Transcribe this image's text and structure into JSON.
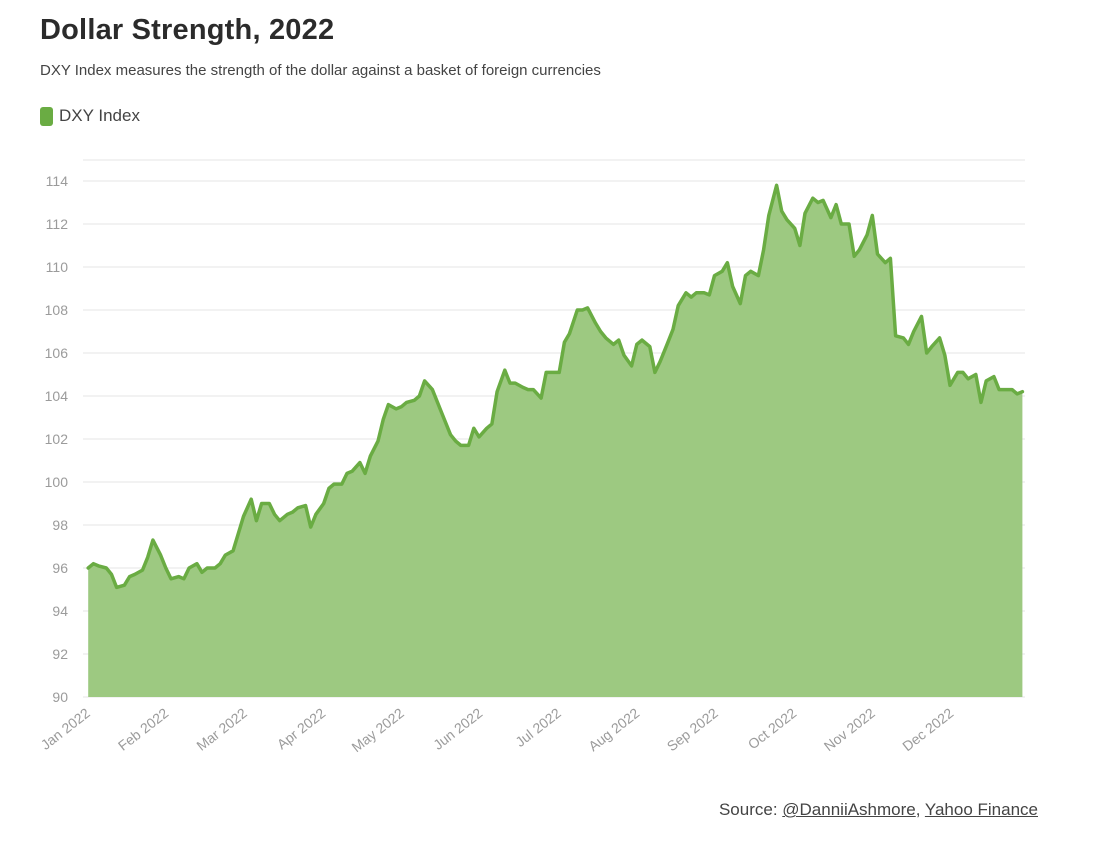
{
  "title": "Dollar Strength, 2022",
  "subtitle": "DXY Index measures the strength of the dollar against a basket of foreign currencies",
  "legend": {
    "label": "DXY Index"
  },
  "source": {
    "prefix": "Source: ",
    "author": "@DanniiAshmore",
    "separator": ", ",
    "provider": "Yahoo Finance"
  },
  "colors": {
    "line": "#6aac43",
    "fill": "#9dc981",
    "grid": "#e6e6e6",
    "tick_text": "#9b9b9b"
  },
  "chart_data": {
    "type": "area",
    "title": "Dollar Strength, 2022",
    "subtitle": "DXY Index measures the strength of the dollar against a basket of foreign currencies",
    "xlabel": "",
    "ylabel": "",
    "ylim": [
      90,
      114
    ],
    "yticks": [
      90,
      92,
      94,
      96,
      98,
      100,
      102,
      104,
      106,
      108,
      110,
      112,
      114
    ],
    "xticks": [
      "Jan 2022",
      "Feb 2022",
      "Mar 2022",
      "Apr 2022",
      "May 2022",
      "Jun 2022",
      "Jul 2022",
      "Aug 2022",
      "Sep 2022",
      "Oct 2022",
      "Nov 2022",
      "Dec 2022"
    ],
    "grid": true,
    "legend_position": "top-left",
    "series": [
      {
        "name": "DXY Index",
        "points": [
          [
            "2022-01-03",
            96.0
          ],
          [
            "2022-01-05",
            96.2
          ],
          [
            "2022-01-07",
            96.1
          ],
          [
            "2022-01-10",
            96.0
          ],
          [
            "2022-01-12",
            95.7
          ],
          [
            "2022-01-14",
            95.1
          ],
          [
            "2022-01-17",
            95.2
          ],
          [
            "2022-01-19",
            95.6
          ],
          [
            "2022-01-21",
            95.7
          ],
          [
            "2022-01-24",
            95.9
          ],
          [
            "2022-01-26",
            96.5
          ],
          [
            "2022-01-28",
            97.3
          ],
          [
            "2022-01-31",
            96.6
          ],
          [
            "2022-02-02",
            96.0
          ],
          [
            "2022-02-04",
            95.5
          ],
          [
            "2022-02-07",
            95.6
          ],
          [
            "2022-02-09",
            95.5
          ],
          [
            "2022-02-11",
            96.0
          ],
          [
            "2022-02-14",
            96.2
          ],
          [
            "2022-02-16",
            95.8
          ],
          [
            "2022-02-18",
            96.0
          ],
          [
            "2022-02-21",
            96.0
          ],
          [
            "2022-02-23",
            96.2
          ],
          [
            "2022-02-25",
            96.6
          ],
          [
            "2022-02-28",
            96.8
          ],
          [
            "2022-03-02",
            97.6
          ],
          [
            "2022-03-04",
            98.4
          ],
          [
            "2022-03-07",
            99.2
          ],
          [
            "2022-03-09",
            98.2
          ],
          [
            "2022-03-11",
            99.0
          ],
          [
            "2022-03-14",
            99.0
          ],
          [
            "2022-03-16",
            98.5
          ],
          [
            "2022-03-18",
            98.2
          ],
          [
            "2022-03-21",
            98.5
          ],
          [
            "2022-03-23",
            98.6
          ],
          [
            "2022-03-25",
            98.8
          ],
          [
            "2022-03-28",
            98.9
          ],
          [
            "2022-03-30",
            97.9
          ],
          [
            "2022-04-01",
            98.5
          ],
          [
            "2022-04-04",
            99.0
          ],
          [
            "2022-04-06",
            99.7
          ],
          [
            "2022-04-08",
            99.9
          ],
          [
            "2022-04-11",
            99.9
          ],
          [
            "2022-04-13",
            100.4
          ],
          [
            "2022-04-15",
            100.5
          ],
          [
            "2022-04-18",
            100.9
          ],
          [
            "2022-04-20",
            100.4
          ],
          [
            "2022-04-22",
            101.2
          ],
          [
            "2022-04-25",
            101.9
          ],
          [
            "2022-04-27",
            102.9
          ],
          [
            "2022-04-29",
            103.6
          ],
          [
            "2022-05-02",
            103.4
          ],
          [
            "2022-05-04",
            103.5
          ],
          [
            "2022-05-06",
            103.7
          ],
          [
            "2022-05-09",
            103.8
          ],
          [
            "2022-05-11",
            104.0
          ],
          [
            "2022-05-13",
            104.7
          ],
          [
            "2022-05-16",
            104.3
          ],
          [
            "2022-05-18",
            103.7
          ],
          [
            "2022-05-20",
            103.1
          ],
          [
            "2022-05-23",
            102.2
          ],
          [
            "2022-05-25",
            101.9
          ],
          [
            "2022-05-27",
            101.7
          ],
          [
            "2022-05-30",
            101.7
          ],
          [
            "2022-06-01",
            102.5
          ],
          [
            "2022-06-03",
            102.1
          ],
          [
            "2022-06-06",
            102.5
          ],
          [
            "2022-06-08",
            102.7
          ],
          [
            "2022-06-10",
            104.2
          ],
          [
            "2022-06-13",
            105.2
          ],
          [
            "2022-06-15",
            104.6
          ],
          [
            "2022-06-17",
            104.6
          ],
          [
            "2022-06-20",
            104.4
          ],
          [
            "2022-06-22",
            104.3
          ],
          [
            "2022-06-24",
            104.3
          ],
          [
            "2022-06-27",
            103.9
          ],
          [
            "2022-06-29",
            105.1
          ],
          [
            "2022-07-01",
            105.1
          ],
          [
            "2022-07-04",
            105.1
          ],
          [
            "2022-07-06",
            106.5
          ],
          [
            "2022-07-08",
            106.9
          ],
          [
            "2022-07-11",
            108.0
          ],
          [
            "2022-07-13",
            108.0
          ],
          [
            "2022-07-15",
            108.1
          ],
          [
            "2022-07-18",
            107.4
          ],
          [
            "2022-07-20",
            107.0
          ],
          [
            "2022-07-22",
            106.7
          ],
          [
            "2022-07-25",
            106.4
          ],
          [
            "2022-07-27",
            106.6
          ],
          [
            "2022-07-29",
            105.9
          ],
          [
            "2022-08-01",
            105.4
          ],
          [
            "2022-08-03",
            106.4
          ],
          [
            "2022-08-05",
            106.6
          ],
          [
            "2022-08-08",
            106.3
          ],
          [
            "2022-08-10",
            105.1
          ],
          [
            "2022-08-12",
            105.6
          ],
          [
            "2022-08-15",
            106.5
          ],
          [
            "2022-08-17",
            107.1
          ],
          [
            "2022-08-19",
            108.2
          ],
          [
            "2022-08-22",
            108.8
          ],
          [
            "2022-08-24",
            108.6
          ],
          [
            "2022-08-26",
            108.8
          ],
          [
            "2022-08-29",
            108.8
          ],
          [
            "2022-08-31",
            108.7
          ],
          [
            "2022-09-02",
            109.6
          ],
          [
            "2022-09-05",
            109.8
          ],
          [
            "2022-09-07",
            110.2
          ],
          [
            "2022-09-09",
            109.1
          ],
          [
            "2022-09-12",
            108.3
          ],
          [
            "2022-09-14",
            109.6
          ],
          [
            "2022-09-16",
            109.8
          ],
          [
            "2022-09-19",
            109.6
          ],
          [
            "2022-09-21",
            110.8
          ],
          [
            "2022-09-23",
            112.4
          ],
          [
            "2022-09-26",
            113.8
          ],
          [
            "2022-09-28",
            112.6
          ],
          [
            "2022-09-30",
            112.2
          ],
          [
            "2022-10-03",
            111.8
          ],
          [
            "2022-10-05",
            111.0
          ],
          [
            "2022-10-07",
            112.5
          ],
          [
            "2022-10-10",
            113.2
          ],
          [
            "2022-10-12",
            113.0
          ],
          [
            "2022-10-14",
            113.1
          ],
          [
            "2022-10-17",
            112.3
          ],
          [
            "2022-10-19",
            112.9
          ],
          [
            "2022-10-21",
            112.0
          ],
          [
            "2022-10-24",
            112.0
          ],
          [
            "2022-10-26",
            110.5
          ],
          [
            "2022-10-28",
            110.8
          ],
          [
            "2022-10-31",
            111.5
          ],
          [
            "2022-11-02",
            112.4
          ],
          [
            "2022-11-04",
            110.6
          ],
          [
            "2022-11-07",
            110.2
          ],
          [
            "2022-11-09",
            110.4
          ],
          [
            "2022-11-11",
            106.8
          ],
          [
            "2022-11-14",
            106.7
          ],
          [
            "2022-11-16",
            106.4
          ],
          [
            "2022-11-18",
            107.0
          ],
          [
            "2022-11-21",
            107.7
          ],
          [
            "2022-11-23",
            106.0
          ],
          [
            "2022-11-25",
            106.3
          ],
          [
            "2022-11-28",
            106.7
          ],
          [
            "2022-11-30",
            105.9
          ],
          [
            "2022-12-02",
            104.5
          ],
          [
            "2022-12-05",
            105.1
          ],
          [
            "2022-12-07",
            105.1
          ],
          [
            "2022-12-09",
            104.8
          ],
          [
            "2022-12-12",
            105.0
          ],
          [
            "2022-12-14",
            103.7
          ],
          [
            "2022-12-16",
            104.7
          ],
          [
            "2022-12-19",
            104.9
          ],
          [
            "2022-12-21",
            104.3
          ],
          [
            "2022-12-23",
            104.3
          ],
          [
            "2022-12-26",
            104.3
          ],
          [
            "2022-12-28",
            104.1
          ],
          [
            "2022-12-30",
            104.2
          ]
        ]
      }
    ]
  }
}
